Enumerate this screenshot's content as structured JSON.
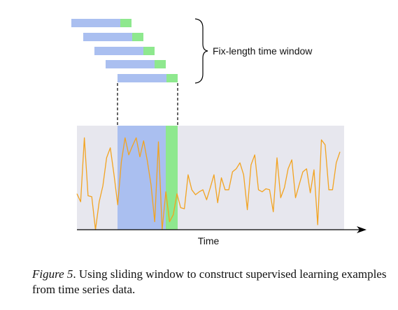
{
  "diagram": {
    "window_label": "Fix-length time window",
    "axis_label": "Time",
    "colors": {
      "plot_background": "#e7e7ee",
      "window_fill": "#aabff0",
      "target_fill": "#8ee88e",
      "series_line": "#f2a320",
      "axis": "#000000"
    },
    "series_values": [
      0.36,
      0.28,
      0.92,
      0.34,
      0.33,
      0.0,
      0.28,
      0.44,
      0.72,
      0.82,
      0.55,
      0.25,
      0.68,
      0.92,
      0.75,
      0.84,
      0.92,
      0.73,
      0.89,
      0.69,
      0.45,
      0.08,
      0.88,
      0.0,
      0.38,
      0.08,
      0.15,
      0.36,
      0.22,
      0.21,
      0.55,
      0.4,
      0.35,
      0.38,
      0.4,
      0.3,
      0.42,
      0.55,
      0.27,
      0.52,
      0.4,
      0.4,
      0.58,
      0.61,
      0.67,
      0.55,
      0.2,
      0.65,
      0.75,
      0.4,
      0.38,
      0.41,
      0.4,
      0.18,
      0.72,
      0.32,
      0.42,
      0.61,
      0.7,
      0.32,
      0.45,
      0.58,
      0.61,
      0.37,
      0.6,
      0.05,
      0.9,
      0.85,
      0.4,
      0.4,
      0.67,
      0.78
    ],
    "window": {
      "start_index": 9,
      "end_index": 19,
      "target_index": 20
    }
  },
  "caption": {
    "figure_label": "Figure 5",
    "text": ". Using sliding window to construct supervised learning examples from time series data."
  }
}
